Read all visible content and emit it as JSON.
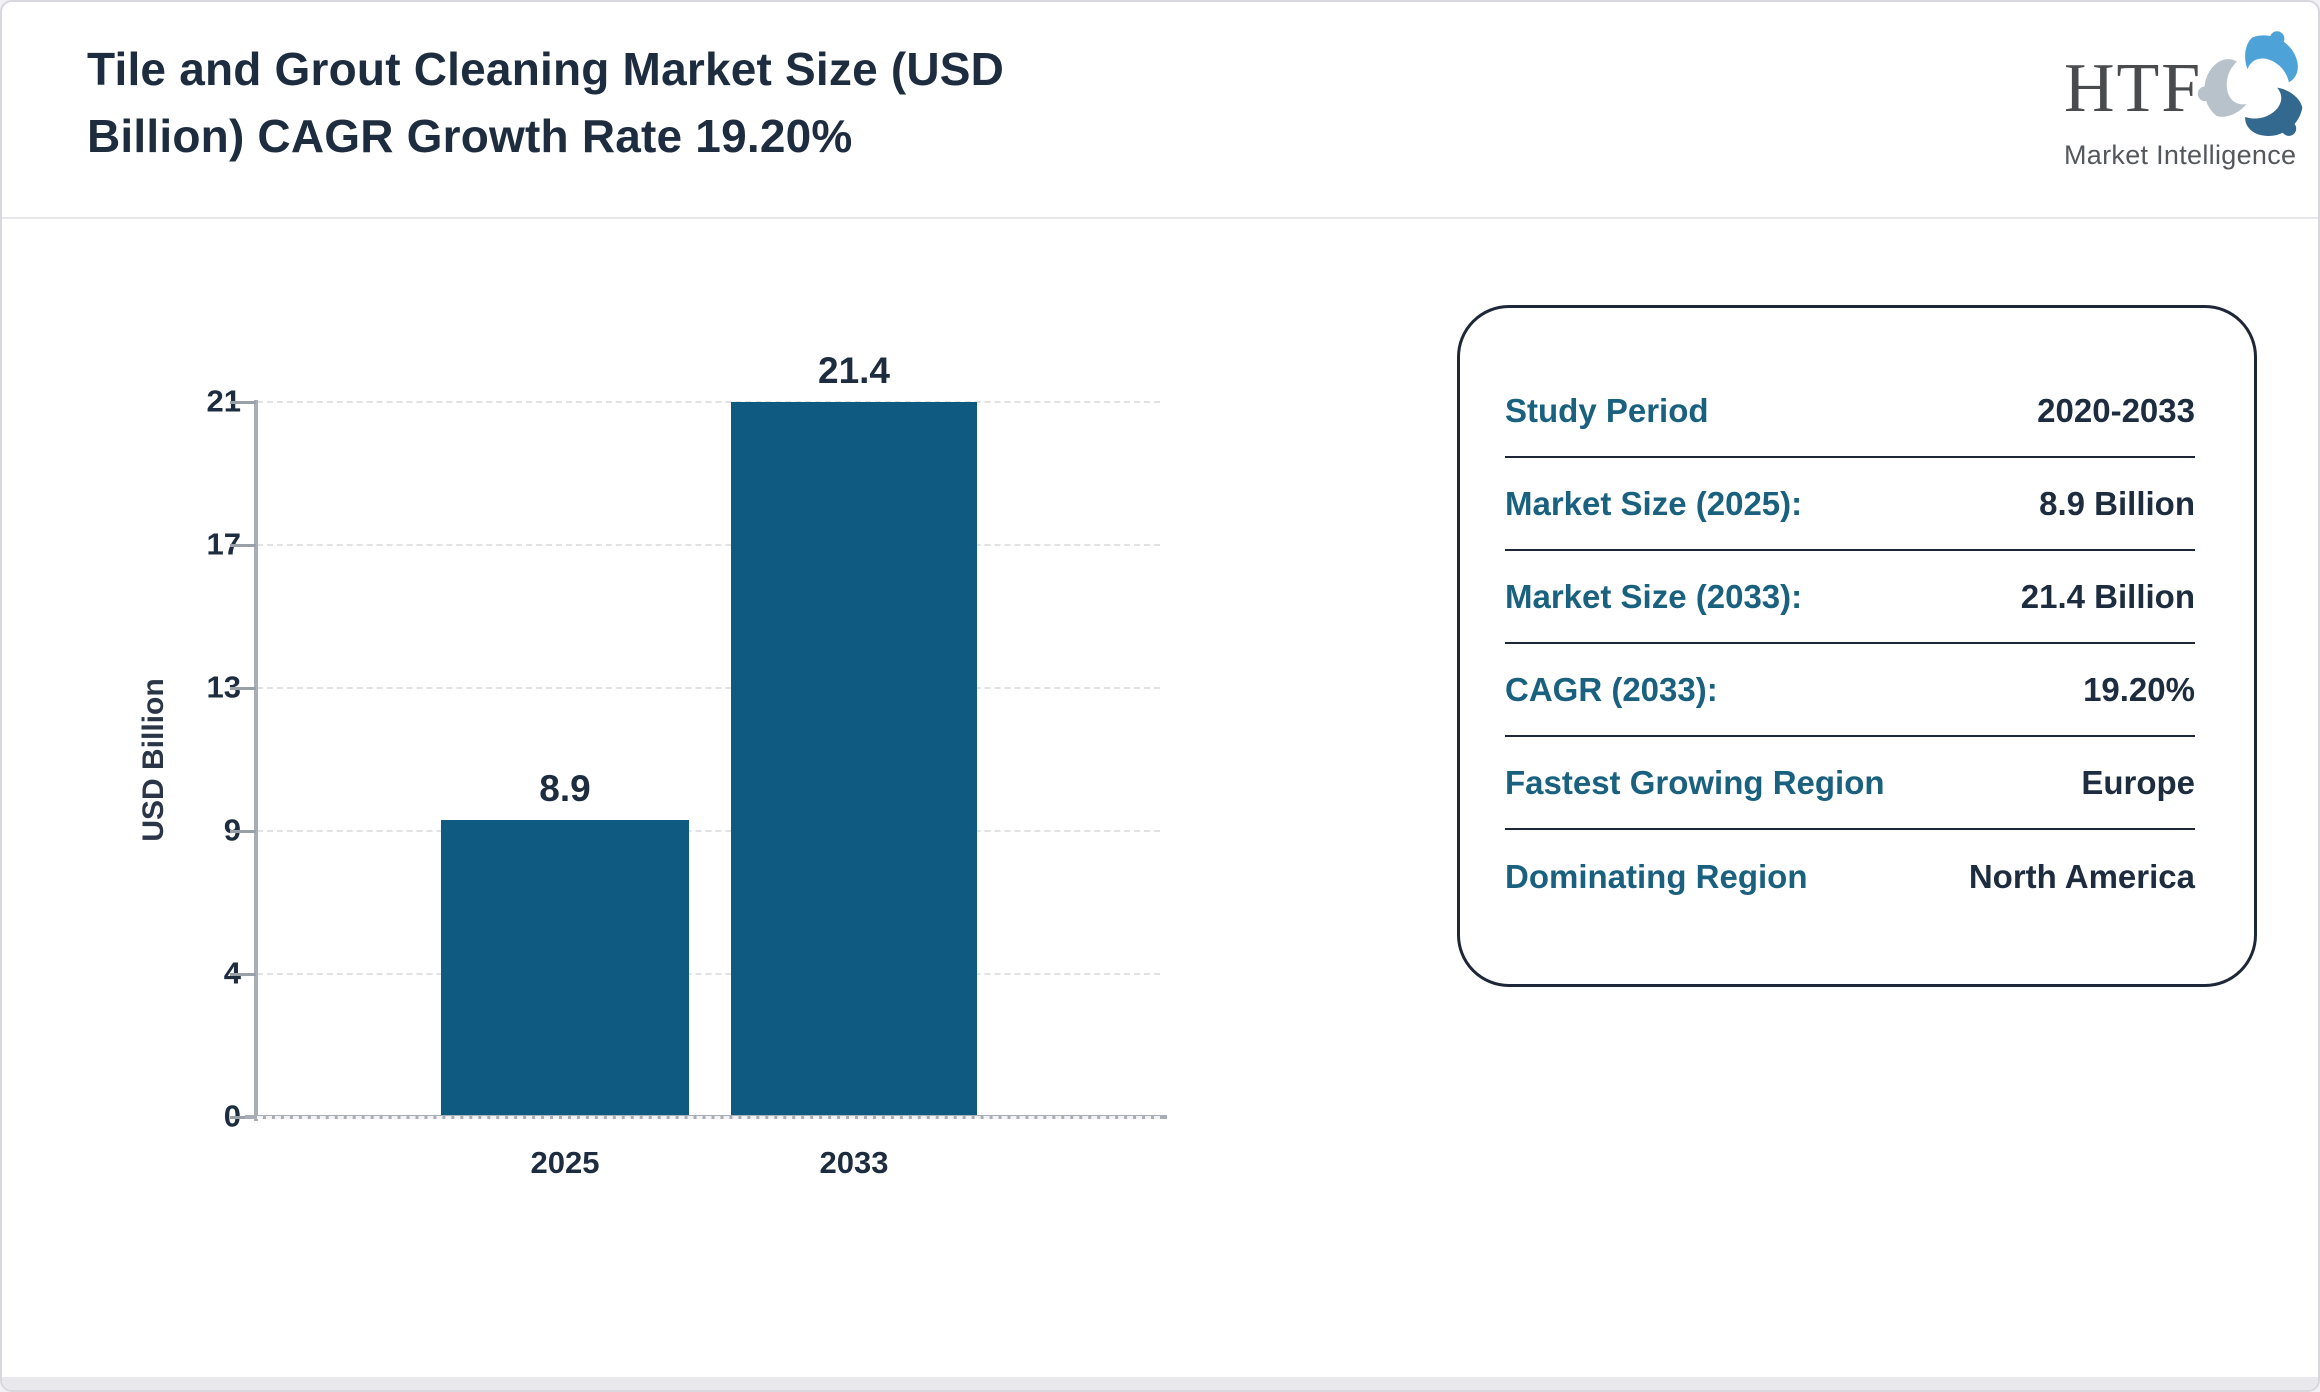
{
  "header": {
    "title_lines": [
      "Tile and Grout Cleaning Market Size (USD",
      "Billion) CAGR Growth Rate 19.20%"
    ],
    "title_color": "#1d2c3e"
  },
  "logo": {
    "text": "HTF",
    "subtext": "Market Intelligence",
    "icon": "three-figures-swirl-icon",
    "colors": {
      "text": "#494b4d",
      "subtext": "#54575b",
      "swirl_light_blue": "#4da3d8",
      "swirl_dark_blue": "#33688f",
      "swirl_gray": "#b7c2cb"
    }
  },
  "chart_data": {
    "type": "bar",
    "title": "Tile and Grout Cleaning Market Size (USD Billion) CAGR Growth Rate 19.20%",
    "categories": [
      "2025",
      "2033"
    ],
    "values": [
      8.9,
      21.4
    ],
    "value_labels": [
      "8.9",
      "21.4"
    ],
    "xlabel": "",
    "ylabel": "USD Billion",
    "ylim": [
      0,
      21.4
    ],
    "ytick_labels": [
      "0",
      "4",
      "9",
      "13",
      "17",
      "21"
    ],
    "grid": "horizontal-dashed",
    "legend": "none",
    "bar_color": "#0e5a80",
    "axis_color": "#a9aeb6",
    "grid_color": "#e2e2e4",
    "tick_text_color": "#1d2c3e",
    "ylabel_color": "#2a3647"
  },
  "info_panel": {
    "border_color": "#1e2737",
    "label_color": "#19617f",
    "value_color": "#1d2c3e",
    "rows": [
      {
        "label": "Study Period",
        "value": "2020-2033"
      },
      {
        "label": "Market Size (2025):",
        "value": "8.9 Billion"
      },
      {
        "label": "Market Size (2033):",
        "value": "21.4 Billion"
      },
      {
        "label": "CAGR (2033):",
        "value": "19.20%"
      },
      {
        "label": "Fastest Growing Region",
        "value": "Europe"
      },
      {
        "label": "Dominating Region",
        "value": "North America"
      }
    ]
  }
}
